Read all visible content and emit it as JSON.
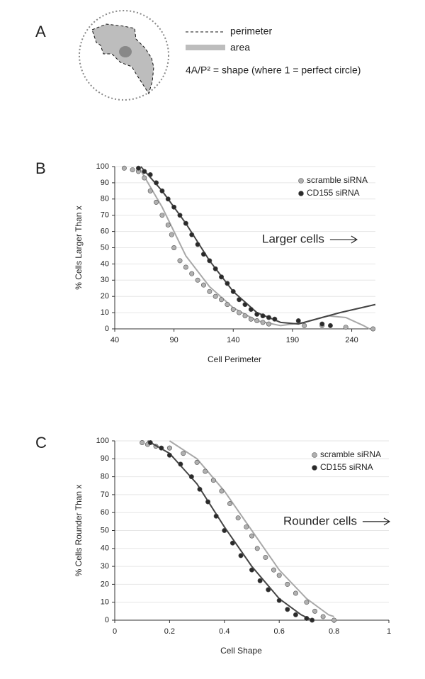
{
  "panel_a": {
    "label": "A",
    "legend": [
      "perimeter",
      "area"
    ],
    "formula": "4A/P² = shape (where 1 = perfect circle)"
  },
  "chart_data": [
    {
      "type": "scatter",
      "panel": "B",
      "xlabel": "Cell Perimeter",
      "ylabel": "% Cells Larger Than x",
      "xlim": [
        40,
        260
      ],
      "xticks": [
        40,
        90,
        140,
        190,
        240
      ],
      "ylim": [
        0,
        100
      ],
      "yticks": [
        0,
        10,
        20,
        30,
        40,
        50,
        60,
        70,
        80,
        90,
        100
      ],
      "grid": true,
      "legend": "upper right",
      "annotation": "Larger cells",
      "series": [
        {
          "name": "scramble siRNA",
          "color": "#b0b0b0",
          "x": [
            48,
            55,
            60,
            65,
            70,
            75,
            80,
            85,
            88,
            90,
            95,
            100,
            105,
            110,
            115,
            120,
            125,
            130,
            135,
            140,
            145,
            150,
            155,
            160,
            165,
            170,
            200,
            215,
            235,
            258
          ],
          "values": [
            99,
            98,
            97,
            93,
            85,
            78,
            70,
            64,
            58,
            50,
            42,
            38,
            34,
            30,
            27,
            23,
            20,
            18,
            15,
            12,
            10,
            8,
            6,
            5,
            4,
            3,
            2,
            2,
            1,
            0
          ],
          "trend_x": [
            60,
            80,
            100,
            120,
            140,
            160,
            180,
            200,
            220,
            235,
            250,
            255
          ],
          "trend_y": [
            100,
            75,
            45,
            26,
            13,
            5,
            2,
            4,
            8,
            7,
            2,
            0
          ]
        },
        {
          "name": "CD155 siRNA",
          "color": "#2a2a2a",
          "x": [
            60,
            65,
            70,
            75,
            80,
            85,
            90,
            95,
            100,
            105,
            110,
            115,
            120,
            125,
            130,
            135,
            140,
            145,
            150,
            155,
            160,
            165,
            170,
            175,
            195,
            215,
            222
          ],
          "values": [
            99,
            97,
            95,
            90,
            85,
            80,
            75,
            70,
            65,
            58,
            52,
            46,
            42,
            37,
            32,
            28,
            23,
            18,
            15,
            12,
            9,
            8,
            7,
            6,
            5,
            3,
            2
          ],
          "trend_x": [
            62,
            80,
            100,
            120,
            140,
            160,
            180,
            195,
            210,
            230,
            260
          ],
          "trend_y": [
            100,
            85,
            65,
            42,
            23,
            10,
            4,
            3,
            6,
            10,
            15
          ]
        }
      ]
    },
    {
      "type": "scatter",
      "panel": "C",
      "xlabel": "Cell Shape",
      "ylabel": "% Cells Rounder Than x",
      "xlim": [
        0,
        1
      ],
      "xticks": [
        0,
        0.2,
        0.4,
        0.6,
        0.8,
        1
      ],
      "ylim": [
        0,
        100
      ],
      "yticks": [
        0,
        10,
        20,
        30,
        40,
        50,
        60,
        70,
        80,
        90,
        100
      ],
      "grid": true,
      "legend": "upper right",
      "annotation": "Rounder cells",
      "series": [
        {
          "name": "scramble siRNA",
          "color": "#b0b0b0",
          "x": [
            0.1,
            0.12,
            0.15,
            0.2,
            0.25,
            0.3,
            0.33,
            0.36,
            0.39,
            0.42,
            0.45,
            0.48,
            0.5,
            0.52,
            0.55,
            0.58,
            0.6,
            0.63,
            0.66,
            0.7,
            0.73,
            0.76,
            0.8
          ],
          "values": [
            99,
            98,
            97,
            96,
            93,
            88,
            83,
            78,
            72,
            65,
            57,
            52,
            47,
            40,
            35,
            28,
            25,
            20,
            15,
            10,
            5,
            2,
            0
          ],
          "trend_x": [
            0.2,
            0.3,
            0.4,
            0.5,
            0.6,
            0.7,
            0.78,
            0.8
          ],
          "trend_y": [
            100,
            90,
            72,
            50,
            28,
            12,
            3,
            2
          ]
        },
        {
          "name": "CD155 siRNA",
          "color": "#2a2a2a",
          "x": [
            0.13,
            0.17,
            0.2,
            0.24,
            0.28,
            0.31,
            0.34,
            0.37,
            0.4,
            0.43,
            0.46,
            0.5,
            0.53,
            0.56,
            0.6,
            0.63,
            0.66,
            0.7,
            0.72
          ],
          "values": [
            99,
            96,
            92,
            87,
            80,
            73,
            66,
            58,
            50,
            43,
            36,
            28,
            22,
            17,
            11,
            6,
            3,
            1,
            0
          ],
          "trend_x": [
            0.12,
            0.2,
            0.3,
            0.4,
            0.5,
            0.6,
            0.68,
            0.72
          ],
          "trend_y": [
            100,
            93,
            76,
            52,
            30,
            12,
            3,
            0
          ]
        }
      ]
    }
  ]
}
